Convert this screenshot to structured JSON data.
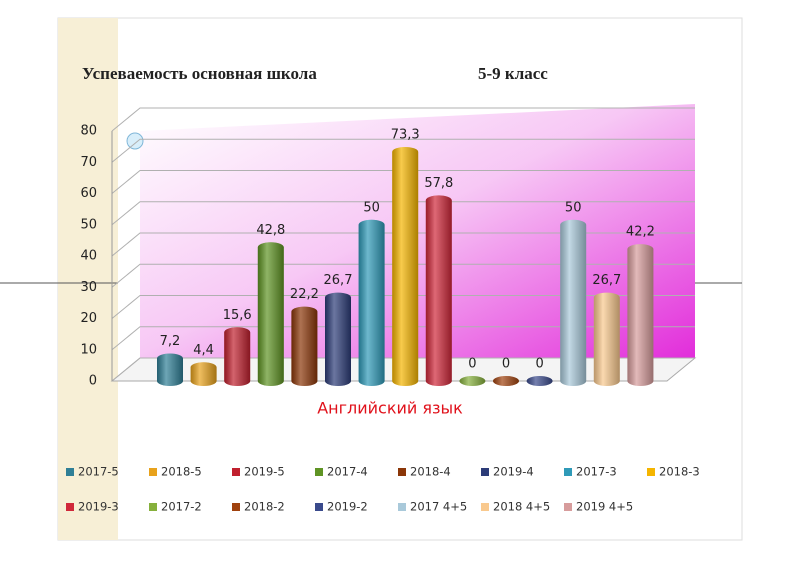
{
  "chart_data": {
    "type": "bar",
    "title": "Успеваемость основная школа",
    "subtitle": "5-9 класс",
    "categories": [
      "Английский язык"
    ],
    "ylim": [
      0,
      80
    ],
    "yticks": [
      0,
      10,
      20,
      30,
      40,
      50,
      60,
      70,
      80
    ],
    "grid": true,
    "legend": "bottom",
    "series": [
      {
        "name": "2017-5",
        "color": "#2f7f96",
        "values": [
          7.2
        ],
        "value_labels": [
          "7,2"
        ]
      },
      {
        "name": "2018-5",
        "color": "#e8a21c",
        "values": [
          4.4
        ],
        "value_labels": [
          "4,4"
        ]
      },
      {
        "name": "2019-5",
        "color": "#c0202e",
        "values": [
          15.6
        ],
        "value_labels": [
          "15,6"
        ]
      },
      {
        "name": "2017-4",
        "color": "#5f9424",
        "values": [
          42.8
        ],
        "value_labels": [
          "42,8"
        ]
      },
      {
        "name": "2018-4",
        "color": "#8b3608",
        "values": [
          22.2
        ],
        "value_labels": [
          "22,2"
        ]
      },
      {
        "name": "2019-4",
        "color": "#2c3c78",
        "values": [
          26.7
        ],
        "value_labels": [
          "26,7"
        ]
      },
      {
        "name": "2017-3",
        "color": "#2f9ab8",
        "values": [
          50
        ],
        "value_labels": [
          "50"
        ]
      },
      {
        "name": "2018-3",
        "color": "#f5b500",
        "values": [
          73.3
        ],
        "value_labels": [
          "73,3"
        ]
      },
      {
        "name": "2019-3",
        "color": "#d0283a",
        "values": [
          57.8
        ],
        "value_labels": [
          "57,8"
        ]
      },
      {
        "name": "2017-2",
        "color": "#86b03c",
        "values": [
          0
        ],
        "value_labels": [
          "0"
        ]
      },
      {
        "name": "2018-2",
        "color": "#a0420e",
        "values": [
          0
        ],
        "value_labels": [
          "0"
        ]
      },
      {
        "name": "2019-2",
        "color": "#3a4a8c",
        "values": [
          0
        ],
        "value_labels": [
          "0"
        ]
      },
      {
        "name": "2017 4+5",
        "color": "#a9c9da",
        "values": [
          50
        ],
        "value_labels": [
          "50"
        ]
      },
      {
        "name": "2018 4+5",
        "color": "#f9c98e",
        "values": [
          26.7
        ],
        "value_labels": [
          "26,7"
        ]
      },
      {
        "name": "2019 4+5",
        "color": "#d79c9c",
        "values": [
          42.2
        ],
        "value_labels": [
          "42,2"
        ]
      }
    ]
  }
}
